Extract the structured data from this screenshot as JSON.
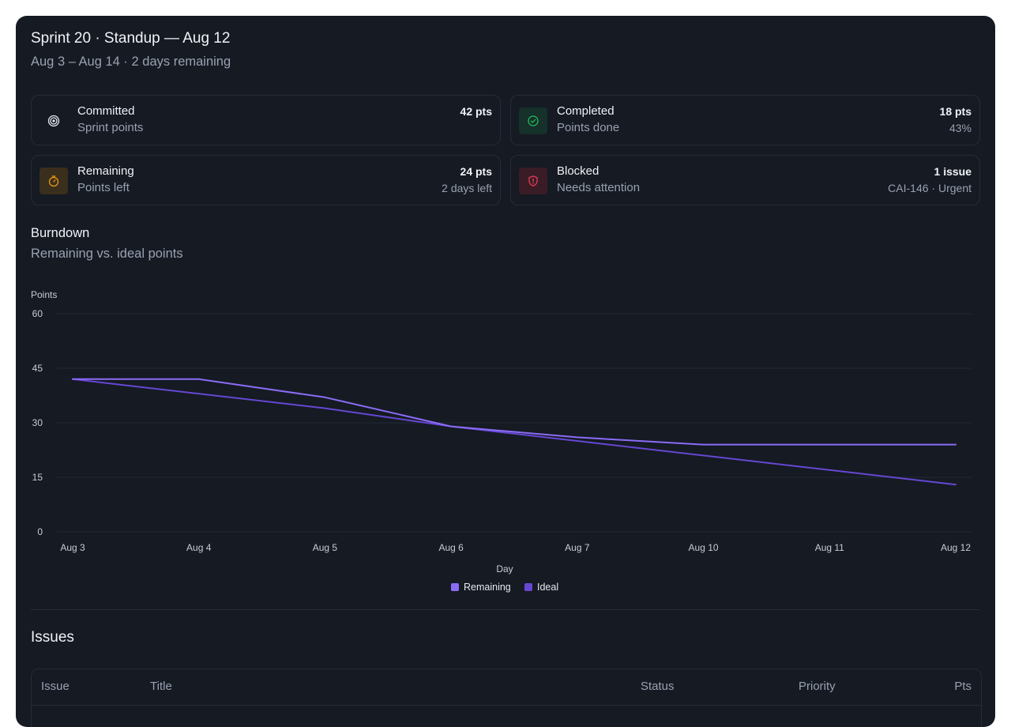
{
  "header": {
    "title": "Sprint 20 · Standup — Aug 12",
    "subtitle": "Aug 3 – Aug 14 · 2 days remaining"
  },
  "stats": {
    "committed": {
      "label": "Committed",
      "sub": "Sprint points",
      "value": "42 pts",
      "icon": "target-icon"
    },
    "completed": {
      "label": "Completed",
      "sub": "Points done",
      "value": "18 pts",
      "value2": "43%",
      "icon": "check-circle-icon",
      "color": "#22c55e"
    },
    "remaining": {
      "label": "Remaining",
      "sub": "Points left",
      "value": "24 pts",
      "value2": "2 days left",
      "icon": "stopwatch-icon",
      "color": "#f59e0b"
    },
    "blocked": {
      "label": "Blocked",
      "sub": "Needs attention",
      "value": "1 issue",
      "value2": "CAI-146 · Urgent",
      "icon": "shield-alert-icon",
      "color": "#f43f5e"
    }
  },
  "burndown": {
    "title": "Burndown",
    "subtitle": "Remaining vs. ideal points"
  },
  "chart_data": {
    "type": "line",
    "x": [
      "Aug 3",
      "Aug 4",
      "Aug 5",
      "Aug 6",
      "Aug 7",
      "Aug 10",
      "Aug 11",
      "Aug 12"
    ],
    "series": [
      {
        "name": "Remaining",
        "values": [
          42,
          42,
          37,
          29,
          26,
          24,
          24,
          24
        ],
        "color": "#8b6cf6"
      },
      {
        "name": "Ideal",
        "values": [
          42,
          38,
          34,
          29,
          25,
          21,
          17,
          13
        ],
        "color": "#6647d1"
      }
    ],
    "xlabel": "Day",
    "ylabel": "Points",
    "ylim": [
      0,
      60
    ],
    "yticks": [
      0,
      15,
      30,
      45,
      60
    ],
    "grid": true,
    "legend": "bottom-center"
  },
  "issues": {
    "title": "Issues",
    "columns": [
      "Issue",
      "Title",
      "Status",
      "Priority",
      "Pts"
    ]
  }
}
